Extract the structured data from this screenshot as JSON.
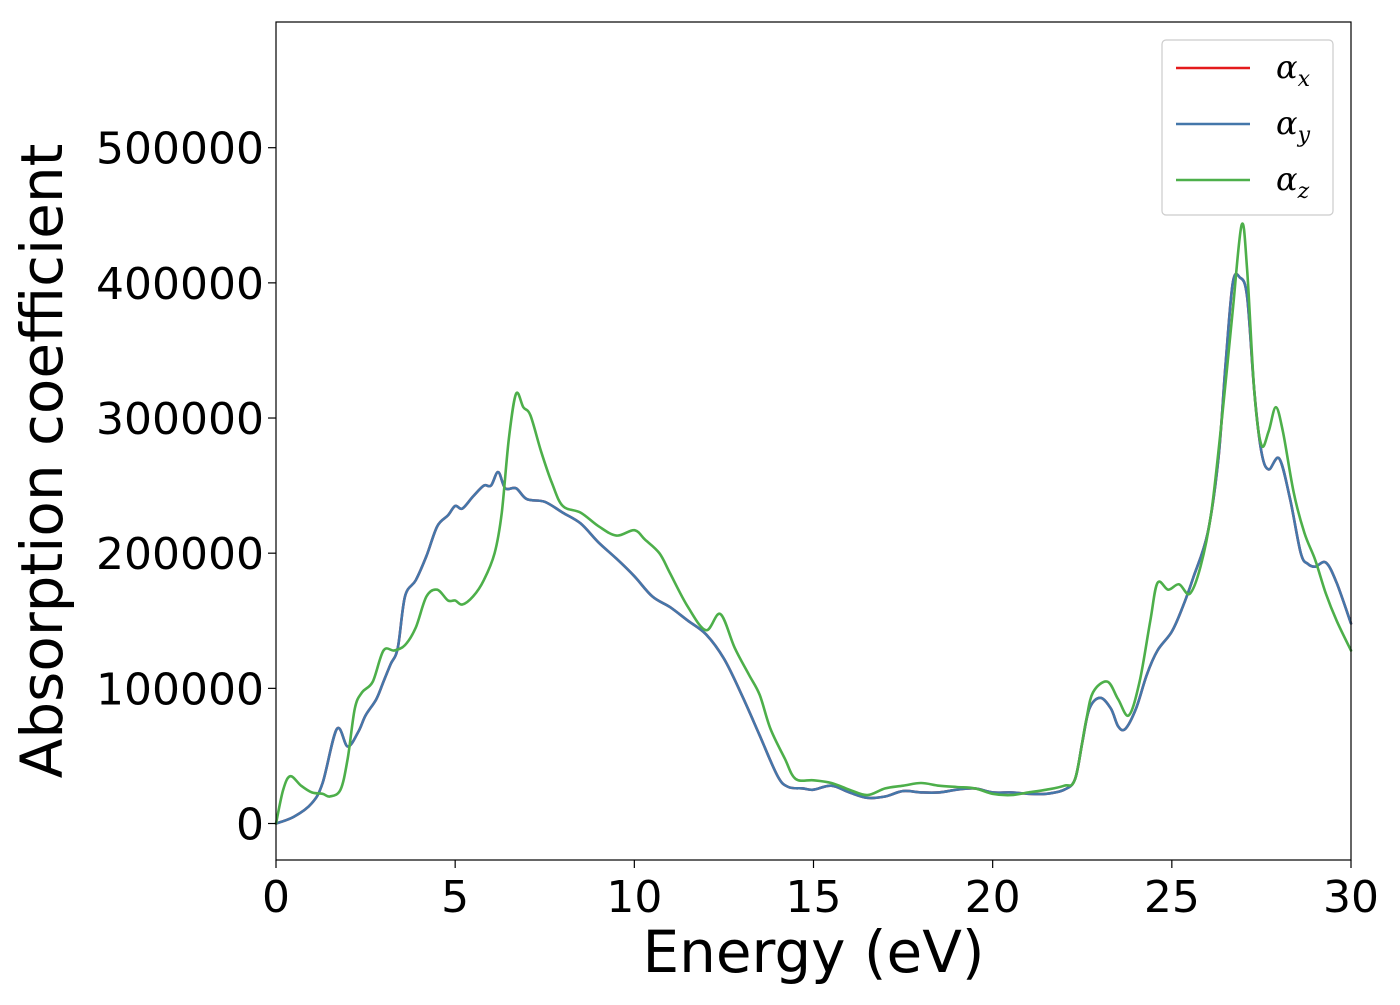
{
  "chart_data": {
    "type": "line",
    "xlabel": "Energy (eV)",
    "ylabel": "Absorption coefficient",
    "xlim": [
      0,
      30
    ],
    "ylim": [
      -27000,
      593000
    ],
    "xticks": [
      0,
      5,
      10,
      15,
      20,
      25,
      30
    ],
    "xtick_labels": [
      "0",
      "5",
      "10",
      "15",
      "20",
      "25",
      "30"
    ],
    "yticks": [
      0,
      100000,
      200000,
      300000,
      400000,
      500000
    ],
    "ytick_labels": [
      "0",
      "100000",
      "200000",
      "300000",
      "400000",
      "500000"
    ],
    "grid": false,
    "legend_position": "top-right",
    "series": [
      {
        "name": "α",
        "subscript": "x",
        "color": "#e41a1c",
        "points": [
          [
            0,
            0
          ],
          [
            0.5,
            5000
          ],
          [
            1.0,
            15000
          ],
          [
            1.3,
            30000
          ],
          [
            1.7,
            70000
          ],
          [
            2.0,
            57000
          ],
          [
            2.3,
            68000
          ],
          [
            2.5,
            80000
          ],
          [
            2.8,
            92000
          ],
          [
            3.0,
            105000
          ],
          [
            3.2,
            118000
          ],
          [
            3.4,
            130000
          ],
          [
            3.6,
            168000
          ],
          [
            3.9,
            180000
          ],
          [
            4.2,
            198000
          ],
          [
            4.5,
            220000
          ],
          [
            4.8,
            228000
          ],
          [
            5.0,
            235000
          ],
          [
            5.2,
            233000
          ],
          [
            5.5,
            242000
          ],
          [
            5.8,
            250000
          ],
          [
            6.0,
            250000
          ],
          [
            6.2,
            260000
          ],
          [
            6.4,
            248000
          ],
          [
            6.7,
            248000
          ],
          [
            7.0,
            240000
          ],
          [
            7.5,
            238000
          ],
          [
            8.0,
            230000
          ],
          [
            8.5,
            222000
          ],
          [
            9.0,
            208000
          ],
          [
            9.5,
            196000
          ],
          [
            10.0,
            183000
          ],
          [
            10.5,
            168000
          ],
          [
            11.0,
            160000
          ],
          [
            11.5,
            150000
          ],
          [
            12.0,
            140000
          ],
          [
            12.5,
            122000
          ],
          [
            13.0,
            95000
          ],
          [
            13.5,
            65000
          ],
          [
            14.0,
            35000
          ],
          [
            14.3,
            27000
          ],
          [
            14.7,
            26000
          ],
          [
            15.0,
            25000
          ],
          [
            15.5,
            28000
          ],
          [
            16.0,
            23000
          ],
          [
            16.5,
            19000
          ],
          [
            17.0,
            20000
          ],
          [
            17.5,
            24000
          ],
          [
            18.0,
            23000
          ],
          [
            18.5,
            23000
          ],
          [
            19.0,
            25000
          ],
          [
            19.5,
            26000
          ],
          [
            20.0,
            23000
          ],
          [
            20.5,
            23000
          ],
          [
            21.0,
            22000
          ],
          [
            21.5,
            22000
          ],
          [
            22.0,
            25000
          ],
          [
            22.3,
            33000
          ],
          [
            22.5,
            60000
          ],
          [
            22.7,
            85000
          ],
          [
            23.0,
            93000
          ],
          [
            23.3,
            85000
          ],
          [
            23.5,
            72000
          ],
          [
            23.7,
            70000
          ],
          [
            24.0,
            85000
          ],
          [
            24.3,
            110000
          ],
          [
            24.6,
            128000
          ],
          [
            25.0,
            142000
          ],
          [
            25.3,
            160000
          ],
          [
            25.6,
            182000
          ],
          [
            26.0,
            215000
          ],
          [
            26.3,
            270000
          ],
          [
            26.5,
            340000
          ],
          [
            26.7,
            400000
          ],
          [
            26.9,
            404000
          ],
          [
            27.1,
            390000
          ],
          [
            27.3,
            320000
          ],
          [
            27.5,
            275000
          ],
          [
            27.7,
            262000
          ],
          [
            28.0,
            270000
          ],
          [
            28.3,
            240000
          ],
          [
            28.6,
            200000
          ],
          [
            28.8,
            192000
          ],
          [
            29.0,
            190000
          ],
          [
            29.3,
            193000
          ],
          [
            29.6,
            178000
          ],
          [
            30.0,
            148000
          ]
        ]
      },
      {
        "name": "α",
        "subscript": "y",
        "color": "#4477aa",
        "points": [
          [
            0,
            0
          ],
          [
            0.5,
            5000
          ],
          [
            1.0,
            15000
          ],
          [
            1.3,
            30000
          ],
          [
            1.7,
            70000
          ],
          [
            2.0,
            57000
          ],
          [
            2.3,
            68000
          ],
          [
            2.5,
            80000
          ],
          [
            2.8,
            92000
          ],
          [
            3.0,
            105000
          ],
          [
            3.2,
            118000
          ],
          [
            3.4,
            130000
          ],
          [
            3.6,
            168000
          ],
          [
            3.9,
            180000
          ],
          [
            4.2,
            198000
          ],
          [
            4.5,
            220000
          ],
          [
            4.8,
            228000
          ],
          [
            5.0,
            235000
          ],
          [
            5.2,
            233000
          ],
          [
            5.5,
            242000
          ],
          [
            5.8,
            250000
          ],
          [
            6.0,
            250000
          ],
          [
            6.2,
            260000
          ],
          [
            6.4,
            248000
          ],
          [
            6.7,
            248000
          ],
          [
            7.0,
            240000
          ],
          [
            7.5,
            238000
          ],
          [
            8.0,
            230000
          ],
          [
            8.5,
            222000
          ],
          [
            9.0,
            208000
          ],
          [
            9.5,
            196000
          ],
          [
            10.0,
            183000
          ],
          [
            10.5,
            168000
          ],
          [
            11.0,
            160000
          ],
          [
            11.5,
            150000
          ],
          [
            12.0,
            140000
          ],
          [
            12.5,
            122000
          ],
          [
            13.0,
            95000
          ],
          [
            13.5,
            65000
          ],
          [
            14.0,
            35000
          ],
          [
            14.3,
            27000
          ],
          [
            14.7,
            26000
          ],
          [
            15.0,
            25000
          ],
          [
            15.5,
            28000
          ],
          [
            16.0,
            23000
          ],
          [
            16.5,
            19000
          ],
          [
            17.0,
            20000
          ],
          [
            17.5,
            24000
          ],
          [
            18.0,
            23000
          ],
          [
            18.5,
            23000
          ],
          [
            19.0,
            25000
          ],
          [
            19.5,
            26000
          ],
          [
            20.0,
            23000
          ],
          [
            20.5,
            23000
          ],
          [
            21.0,
            22000
          ],
          [
            21.5,
            22000
          ],
          [
            22.0,
            25000
          ],
          [
            22.3,
            33000
          ],
          [
            22.5,
            60000
          ],
          [
            22.7,
            85000
          ],
          [
            23.0,
            93000
          ],
          [
            23.3,
            85000
          ],
          [
            23.5,
            72000
          ],
          [
            23.7,
            70000
          ],
          [
            24.0,
            85000
          ],
          [
            24.3,
            110000
          ],
          [
            24.6,
            128000
          ],
          [
            25.0,
            142000
          ],
          [
            25.3,
            160000
          ],
          [
            25.6,
            182000
          ],
          [
            26.0,
            215000
          ],
          [
            26.3,
            270000
          ],
          [
            26.5,
            340000
          ],
          [
            26.7,
            400000
          ],
          [
            26.9,
            404000
          ],
          [
            27.1,
            390000
          ],
          [
            27.3,
            320000
          ],
          [
            27.5,
            275000
          ],
          [
            27.7,
            262000
          ],
          [
            28.0,
            270000
          ],
          [
            28.3,
            240000
          ],
          [
            28.6,
            200000
          ],
          [
            28.8,
            192000
          ],
          [
            29.0,
            190000
          ],
          [
            29.3,
            193000
          ],
          [
            29.6,
            178000
          ],
          [
            30.0,
            148000
          ]
        ]
      },
      {
        "name": "α",
        "subscript": "z",
        "color": "#4daf4a",
        "points": [
          [
            0,
            0
          ],
          [
            0.2,
            25000
          ],
          [
            0.4,
            35000
          ],
          [
            0.7,
            28000
          ],
          [
            1.0,
            23000
          ],
          [
            1.3,
            22000
          ],
          [
            1.5,
            20000
          ],
          [
            1.8,
            25000
          ],
          [
            2.0,
            48000
          ],
          [
            2.2,
            85000
          ],
          [
            2.4,
            97000
          ],
          [
            2.7,
            105000
          ],
          [
            3.0,
            128000
          ],
          [
            3.3,
            128000
          ],
          [
            3.6,
            132000
          ],
          [
            3.9,
            145000
          ],
          [
            4.2,
            168000
          ],
          [
            4.5,
            173000
          ],
          [
            4.8,
            165000
          ],
          [
            5.0,
            165000
          ],
          [
            5.2,
            162000
          ],
          [
            5.5,
            168000
          ],
          [
            5.8,
            180000
          ],
          [
            6.1,
            200000
          ],
          [
            6.3,
            230000
          ],
          [
            6.5,
            285000
          ],
          [
            6.7,
            318000
          ],
          [
            6.9,
            308000
          ],
          [
            7.1,
            302000
          ],
          [
            7.4,
            275000
          ],
          [
            7.7,
            252000
          ],
          [
            8.0,
            235000
          ],
          [
            8.5,
            230000
          ],
          [
            9.0,
            220000
          ],
          [
            9.5,
            213000
          ],
          [
            10.0,
            217000
          ],
          [
            10.3,
            210000
          ],
          [
            10.7,
            200000
          ],
          [
            11.0,
            185000
          ],
          [
            11.5,
            160000
          ],
          [
            12.0,
            143000
          ],
          [
            12.4,
            155000
          ],
          [
            12.8,
            130000
          ],
          [
            13.2,
            110000
          ],
          [
            13.5,
            95000
          ],
          [
            13.8,
            70000
          ],
          [
            14.2,
            48000
          ],
          [
            14.5,
            33000
          ],
          [
            15.0,
            32000
          ],
          [
            15.5,
            30000
          ],
          [
            16.0,
            25000
          ],
          [
            16.5,
            21000
          ],
          [
            17.0,
            26000
          ],
          [
            17.5,
            28000
          ],
          [
            18.0,
            30000
          ],
          [
            18.5,
            28000
          ],
          [
            19.0,
            27000
          ],
          [
            19.5,
            26000
          ],
          [
            20.0,
            22000
          ],
          [
            20.5,
            21000
          ],
          [
            21.0,
            23000
          ],
          [
            21.5,
            25000
          ],
          [
            22.0,
            28000
          ],
          [
            22.3,
            33000
          ],
          [
            22.6,
            75000
          ],
          [
            22.8,
            97000
          ],
          [
            23.2,
            105000
          ],
          [
            23.5,
            92000
          ],
          [
            23.8,
            80000
          ],
          [
            24.1,
            105000
          ],
          [
            24.4,
            150000
          ],
          [
            24.6,
            178000
          ],
          [
            24.9,
            173000
          ],
          [
            25.2,
            177000
          ],
          [
            25.5,
            170000
          ],
          [
            25.8,
            190000
          ],
          [
            26.1,
            230000
          ],
          [
            26.4,
            300000
          ],
          [
            26.7,
            380000
          ],
          [
            26.95,
            443000
          ],
          [
            27.1,
            410000
          ],
          [
            27.3,
            320000
          ],
          [
            27.5,
            280000
          ],
          [
            27.7,
            290000
          ],
          [
            27.9,
            308000
          ],
          [
            28.1,
            290000
          ],
          [
            28.4,
            245000
          ],
          [
            28.7,
            215000
          ],
          [
            29.0,
            195000
          ],
          [
            29.3,
            170000
          ],
          [
            29.6,
            150000
          ],
          [
            30.0,
            128000
          ]
        ]
      }
    ]
  }
}
